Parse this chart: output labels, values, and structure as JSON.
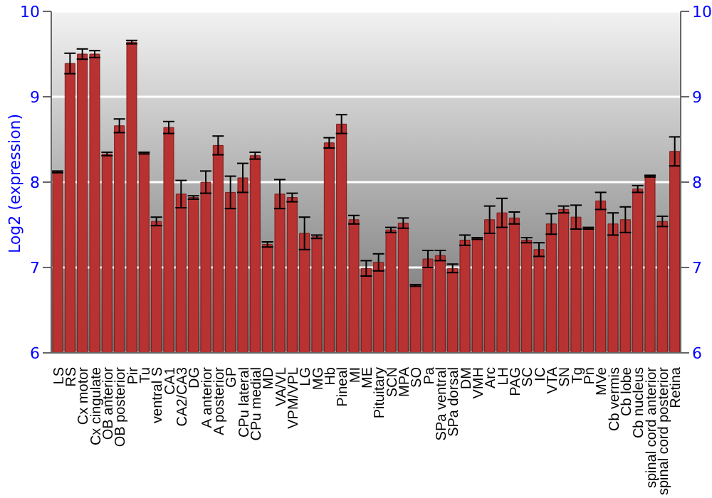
{
  "chart_data": {
    "type": "bar",
    "ylabel": "Log2 (expression)",
    "categories": [
      "LS",
      "RS",
      "Cx motor",
      "Cx cingulate",
      "OB anterior",
      "OB posterior",
      "Pir",
      "Tu",
      "ventral S",
      "CA1",
      "CA2/CA3",
      "DG",
      "A anterior",
      "A posterior",
      "GP",
      "CPu lateral",
      "CPu medial",
      "MD",
      "VA/VL",
      "VPM/VPL",
      "LG",
      "MG",
      "Hb",
      "Pineal",
      "MI",
      "ME",
      "Pituitary",
      "SCN",
      "MPA",
      "SO",
      "Pa",
      "SPa ventral",
      "SPa dorsal",
      "DM",
      "VMH",
      "Arc",
      "LH",
      "PAG",
      "SC",
      "IC",
      "VTA",
      "SN",
      "Tg",
      "Pn",
      "MVe",
      "Cb vermis",
      "Cb lobe",
      "Cb nucleus",
      "spinal cord anterior",
      "spinal cord posterior",
      "Retina"
    ],
    "values": [
      8.12,
      9.39,
      9.5,
      9.5,
      8.33,
      8.66,
      9.64,
      8.34,
      7.54,
      8.64,
      7.86,
      7.82,
      8.0,
      8.43,
      7.88,
      8.05,
      8.31,
      7.27,
      7.86,
      7.82,
      7.4,
      7.36,
      8.46,
      8.68,
      7.56,
      6.99,
      7.06,
      7.44,
      7.52,
      6.79,
      7.1,
      7.14,
      6.99,
      7.32,
      7.34,
      7.56,
      7.64,
      7.58,
      7.32,
      7.21,
      7.51,
      7.68,
      7.59,
      7.46,
      7.78,
      7.51,
      7.56,
      7.92,
      8.07,
      7.54,
      8.36
    ],
    "errors": [
      0.01,
      0.12,
      0.06,
      0.04,
      0.02,
      0.08,
      0.02,
      0.01,
      0.05,
      0.07,
      0.16,
      0.02,
      0.13,
      0.11,
      0.19,
      0.17,
      0.04,
      0.03,
      0.17,
      0.05,
      0.19,
      0.02,
      0.06,
      0.11,
      0.05,
      0.09,
      0.1,
      0.03,
      0.06,
      0.01,
      0.1,
      0.06,
      0.05,
      0.06,
      0.01,
      0.16,
      0.17,
      0.07,
      0.03,
      0.08,
      0.12,
      0.04,
      0.14,
      0.01,
      0.1,
      0.13,
      0.15,
      0.04,
      0.01,
      0.06,
      0.17
    ],
    "color": "#b83232",
    "ylim": [
      6,
      10
    ],
    "yticks": [
      6,
      7,
      8,
      9,
      10
    ],
    "y2lim": [
      6,
      10
    ],
    "y2ticks": [
      6,
      7,
      8,
      9,
      10
    ],
    "grid": "y"
  }
}
